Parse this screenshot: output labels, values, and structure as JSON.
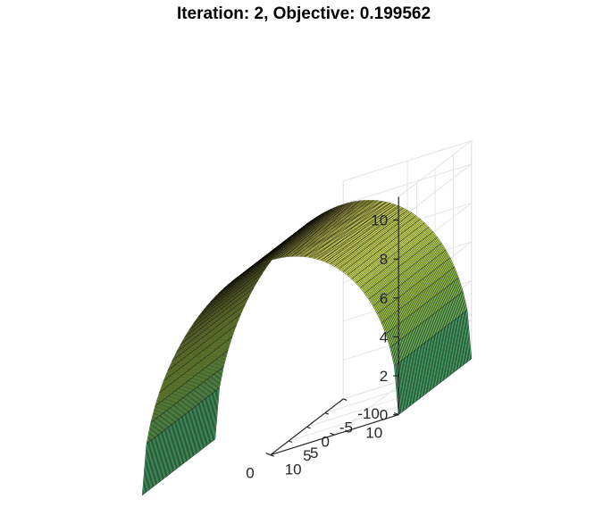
{
  "chart_data": {
    "type": "surface",
    "title": "Iteration: 2, Objective: 0.199562",
    "surface": "z = sqrt(R^2 - y^2), half-cylinder arch along x, radius 10",
    "radius": 10,
    "xlim": [
      -10,
      10
    ],
    "ylim": [
      0,
      10
    ],
    "zlim": [
      0,
      11.2
    ],
    "x_ticks": [
      "-10",
      "-5",
      "0",
      "5",
      "10"
    ],
    "y_ticks": [
      "0",
      "5",
      "10"
    ],
    "z_ticks": [
      "0",
      "2",
      "4",
      "6",
      "8",
      "10"
    ],
    "x_range": [
      -10,
      10
    ],
    "y_range": [
      -10,
      10
    ],
    "grid_divisions": 60,
    "colormap": "parula",
    "colors": {
      "low": "#1fa187",
      "mid": "#a5cf4b",
      "high": "#f2f06a",
      "edge": "#000000"
    },
    "grid": true,
    "xlabel": "",
    "ylabel": "",
    "zlabel": ""
  }
}
